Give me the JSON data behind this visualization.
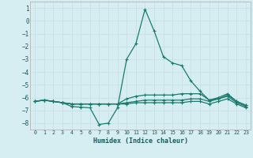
{
  "xlabel": "Humidex (Indice chaleur)",
  "background_color": "#d6eef2",
  "grid_color": "#c8e0e6",
  "line_color": "#1a7a6e",
  "ylim": [
    -8.5,
    1.5
  ],
  "xlim": [
    -0.5,
    23.5
  ],
  "yticks": [
    1,
    0,
    -1,
    -2,
    -3,
    -4,
    -5,
    -6,
    -7,
    -8
  ],
  "xticks": [
    0,
    1,
    2,
    3,
    4,
    5,
    6,
    7,
    8,
    9,
    10,
    11,
    12,
    13,
    14,
    15,
    16,
    17,
    18,
    19,
    20,
    21,
    22,
    23
  ],
  "line1_x": [
    0,
    1,
    2,
    3,
    4,
    5,
    6,
    7,
    8,
    9,
    10,
    11,
    12,
    13,
    14,
    15,
    16,
    17,
    18,
    19,
    20,
    21,
    22,
    23
  ],
  "line1_y": [
    -6.3,
    -6.2,
    -6.3,
    -6.4,
    -6.7,
    -6.75,
    -6.8,
    -8.1,
    -8.0,
    -6.8,
    -3.0,
    -1.8,
    0.9,
    -0.8,
    -2.8,
    -3.3,
    -3.5,
    -4.7,
    -5.5,
    -6.2,
    -6.0,
    -5.7,
    -6.3,
    -6.6
  ],
  "line2_x": [
    0,
    1,
    2,
    3,
    4,
    5,
    6,
    7,
    8,
    9,
    10,
    11,
    12,
    13,
    14,
    15,
    16,
    17,
    18,
    19,
    20,
    21,
    22,
    23
  ],
  "line2_y": [
    -6.3,
    -6.2,
    -6.3,
    -6.4,
    -6.5,
    -6.5,
    -6.5,
    -6.5,
    -6.5,
    -6.5,
    -6.1,
    -5.9,
    -5.8,
    -5.8,
    -5.8,
    -5.8,
    -5.7,
    -5.7,
    -5.7,
    -6.2,
    -6.1,
    -5.8,
    -6.3,
    -6.6
  ],
  "line3_x": [
    0,
    1,
    2,
    3,
    4,
    5,
    6,
    7,
    8,
    9,
    10,
    11,
    12,
    13,
    14,
    15,
    16,
    17,
    18,
    19,
    20,
    21,
    22,
    23
  ],
  "line3_y": [
    -6.3,
    -6.2,
    -6.3,
    -6.4,
    -6.5,
    -6.5,
    -6.5,
    -6.5,
    -6.5,
    -6.5,
    -6.4,
    -6.3,
    -6.2,
    -6.2,
    -6.2,
    -6.2,
    -6.2,
    -6.1,
    -6.1,
    -6.3,
    -6.1,
    -5.9,
    -6.4,
    -6.7
  ],
  "line4_x": [
    0,
    1,
    2,
    3,
    4,
    5,
    6,
    7,
    8,
    9,
    10,
    11,
    12,
    13,
    14,
    15,
    16,
    17,
    18,
    19,
    20,
    21,
    22,
    23
  ],
  "line4_y": [
    -6.3,
    -6.2,
    -6.3,
    -6.4,
    -6.5,
    -6.5,
    -6.5,
    -6.5,
    -6.5,
    -6.5,
    -6.5,
    -6.4,
    -6.4,
    -6.4,
    -6.4,
    -6.4,
    -6.4,
    -6.3,
    -6.3,
    -6.5,
    -6.3,
    -6.1,
    -6.5,
    -6.8
  ]
}
